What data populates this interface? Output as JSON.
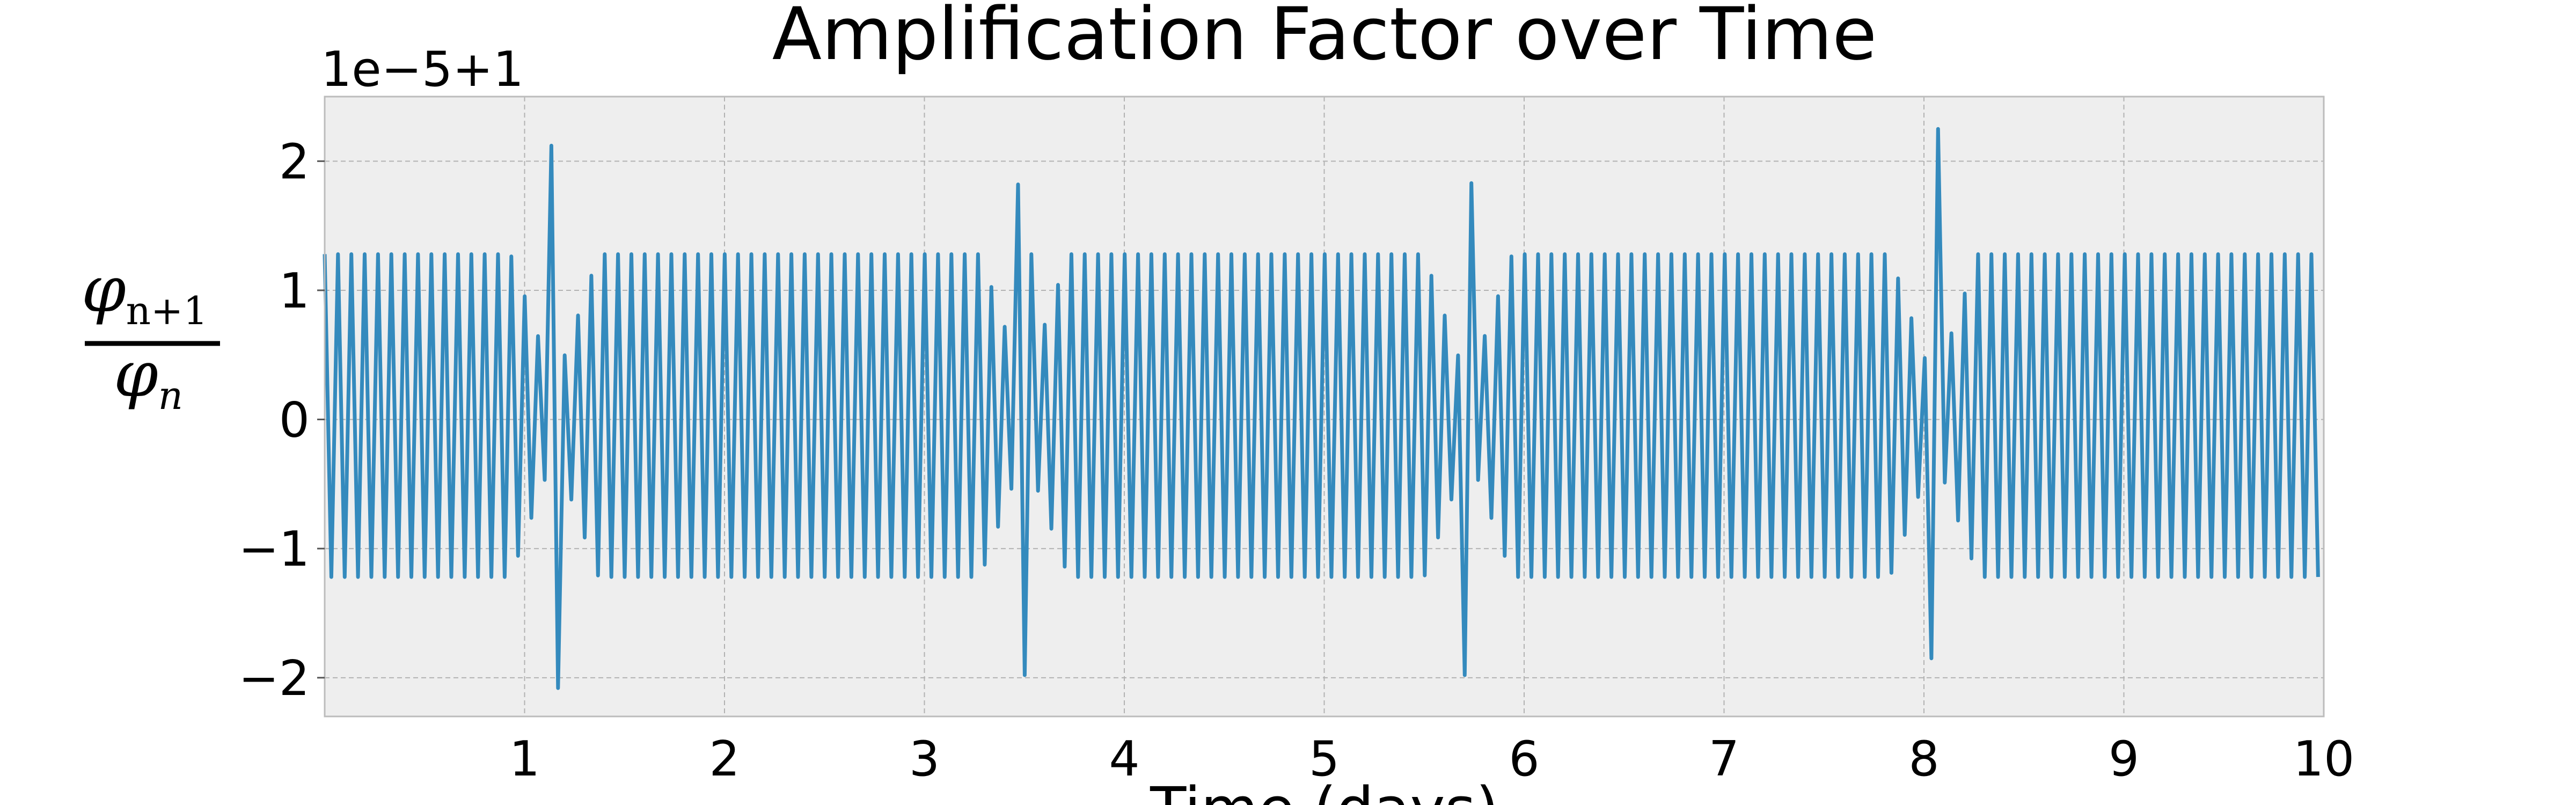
{
  "chart_data": {
    "type": "line",
    "title": "Amplification Factor over Time",
    "xlabel": "Time (days)",
    "ylabel": {
      "numerator_symbol": "φ",
      "numerator_subscript": "n+1",
      "denominator_symbol": "φ",
      "denominator_subscript": "n"
    },
    "y_offset_label": "1e−5+1",
    "xlim": [
      0,
      10
    ],
    "ylim": [
      -2.3,
      2.5
    ],
    "x_ticks": [
      1,
      2,
      3,
      4,
      5,
      6,
      7,
      8,
      9,
      10
    ],
    "x_tick_labels": [
      "1",
      "2",
      "3",
      "4",
      "5",
      "6",
      "7",
      "8",
      "9",
      "10"
    ],
    "y_ticks": [
      -2,
      -1,
      0,
      1,
      2
    ],
    "y_tick_labels": [
      "−2",
      "−1",
      "0",
      "1",
      "2"
    ],
    "grid": true,
    "line_color": "#348ABD",
    "background_color": "#EEEEEE",
    "grid_color": "#B2B2B2",
    "series": [
      {
        "oscillation_period_days": 0.0667,
        "typical_peak": 1.28,
        "typical_trough": -1.22,
        "events": [
          {
            "x": 1.15,
            "peak": 2.12,
            "trough": -2.08
          },
          {
            "x": 3.5,
            "peak": 1.82,
            "trough": -1.98
          },
          {
            "x": 5.72,
            "peak": 1.83,
            "trough": -1.98
          },
          {
            "x": 8.05,
            "peak": 2.25,
            "trough": -1.85
          }
        ]
      }
    ]
  }
}
